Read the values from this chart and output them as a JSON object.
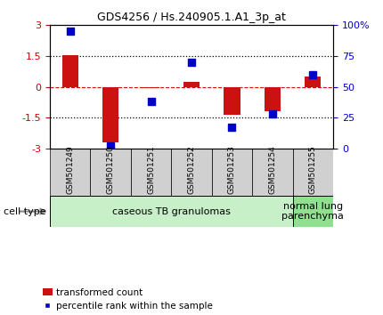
{
  "title": "GDS4256 / Hs.240905.1.A1_3p_at",
  "samples": [
    "GSM501249",
    "GSM501250",
    "GSM501251",
    "GSM501252",
    "GSM501253",
    "GSM501254",
    "GSM501255"
  ],
  "transformed_count": [
    1.55,
    -2.7,
    -0.08,
    0.22,
    -1.35,
    -1.2,
    0.5
  ],
  "percentile_rank": [
    95,
    2,
    38,
    70,
    17,
    28,
    60
  ],
  "ylim_left": [
    -3,
    3
  ],
  "ylim_right": [
    0,
    100
  ],
  "yticks_left": [
    -3,
    -1.5,
    0,
    1.5,
    3
  ],
  "yticks_right": [
    0,
    25,
    50,
    75,
    100
  ],
  "yticklabels_right": [
    "0",
    "25",
    "50",
    "75",
    "100%"
  ],
  "hlines_dotted": [
    1.5,
    -1.5
  ],
  "hline_dashed": 0,
  "bar_color": "#cc1111",
  "marker_color": "#0000cc",
  "bar_width": 0.4,
  "marker_size": 6,
  "groups": [
    {
      "label": "caseous TB granulomas",
      "start": 0,
      "end": 5,
      "color": "#c8f0c8"
    },
    {
      "label": "normal lung\nparenchyma",
      "start": 6,
      "end": 6,
      "color": "#90e090"
    }
  ],
  "cell_type_label": "cell type",
  "legend_items": [
    {
      "color": "#cc1111",
      "label": "transformed count"
    },
    {
      "color": "#0000cc",
      "label": "percentile rank within the sample"
    }
  ],
  "left_axis_color": "#cc0000",
  "right_axis_color": "#0000cc",
  "sample_box_color": "#d0d0d0",
  "title_fontsize": 9,
  "tick_fontsize": 8,
  "sample_fontsize": 6.5,
  "group_fontsize": 8,
  "legend_fontsize": 7.5
}
